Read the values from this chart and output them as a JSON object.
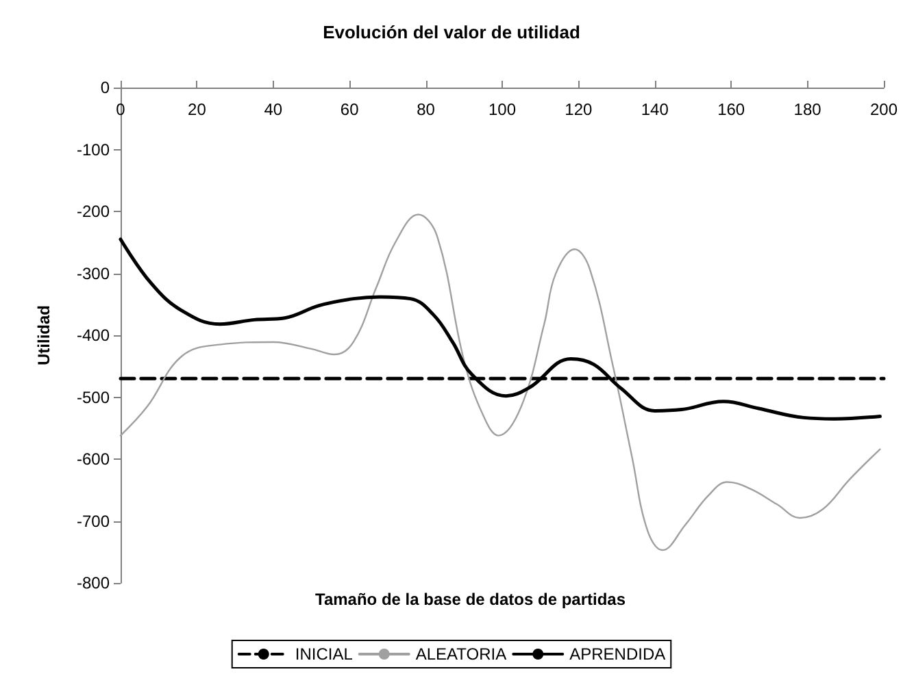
{
  "chart_data": {
    "type": "line",
    "title": "Evolución del valor de utilidad",
    "xlabel": "Tamaño de la base de datos de partidas",
    "ylabel": "Utilidad",
    "xlim": [
      0,
      200
    ],
    "xticks": [
      0,
      20,
      40,
      60,
      80,
      100,
      120,
      140,
      160,
      180,
      200
    ],
    "ylim": [
      -800,
      0
    ],
    "yticks": [
      -800,
      -700,
      -600,
      -500,
      -400,
      -300,
      -200,
      -100,
      0
    ],
    "grid": false,
    "legend": "bottom",
    "marker": "none",
    "series": [
      {
        "name": "INICIAL",
        "color": "#000000",
        "line_style": "dashed",
        "x": [
          0,
          200
        ],
        "values": [
          -470,
          -470
        ]
      },
      {
        "name": "ALEATORIA",
        "color": "#a0a0a0",
        "line_style": "solid",
        "x": [
          0,
          7,
          16,
          26,
          40,
          50,
          56,
          61,
          67,
          72,
          78,
          83,
          90,
          95,
          99,
          105,
          111,
          114,
          119,
          123,
          129,
          134,
          138,
          142,
          148,
          154,
          159,
          165,
          172,
          178,
          184,
          191,
          199
        ],
        "values": [
          -562,
          -515,
          -434,
          -415,
          -411,
          -422,
          -431,
          -411,
          -323,
          -250,
          -205,
          -241,
          -441,
          -529,
          -562,
          -515,
          -382,
          -301,
          -261,
          -294,
          -449,
          -596,
          -714,
          -747,
          -706,
          -659,
          -637,
          -648,
          -673,
          -695,
          -681,
          -633,
          -584
        ]
      },
      {
        "name": "APRENDIDA",
        "color": "#000000",
        "line_style": "solid",
        "x": [
          0,
          8,
          16,
          26,
          35,
          43,
          52,
          61,
          68,
          76,
          82,
          87,
          92,
          101,
          107,
          118,
          124,
          131,
          140,
          147,
          158,
          167,
          179,
          187,
          199
        ],
        "values": [
          -245,
          -316,
          -360,
          -382,
          -375,
          -372,
          -352,
          -341,
          -338,
          -341,
          -367,
          -411,
          -463,
          -498,
          -485,
          -438,
          -447,
          -485,
          -522,
          -520,
          -507,
          -518,
          -533,
          -535,
          -531
        ]
      }
    ]
  }
}
